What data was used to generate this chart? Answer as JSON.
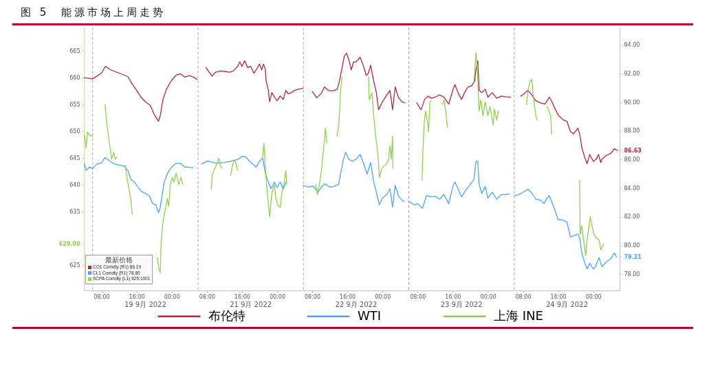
{
  "chart_data": {
    "type": "line",
    "title": "图 5  能源市场上周走势",
    "annotations": [
      "最新价格",
      "CO1 Comdty (R1) 86.19",
      "CL1 Comdty (R1) 78.80",
      "SCPA Comdty (L1) 625.1001",
      "19 9月 2022",
      "21 9月 2022",
      "22 9月 2022",
      "23 9月 2022",
      "24 9月 2022"
    ],
    "series": [
      {
        "name": "布伦特",
        "color": "#b8243c",
        "axis": "y2",
        "x": [
          "2022-09-19T04:06",
          "2022-09-19T06:00",
          "2022-09-19T08:00",
          "2022-09-19T08:54",
          "2022-09-19T10:00",
          "2022-09-19T12:00",
          "2022-09-19T14:00",
          "2022-09-19T15:00",
          "2022-09-19T16:00",
          "2022-09-19T17:00",
          "2022-09-19T18:00",
          "2022-09-19T19:06",
          "2022-09-19T20:00",
          "2022-09-19T21:00",
          "2022-09-19T21:24",
          "2022-09-19T22:00",
          "2022-09-19T22:48",
          "2022-09-20T00:00",
          "2022-09-20T01:06",
          "2022-09-20T02:00",
          "2022-09-20T03:00",
          "2022-09-20T04:00",
          "2022-09-20T05:00",
          "2022-09-20T05:48",
          "2022-09-20T06:48",
          "2022-09-20T07:48",
          "2022-09-20T08:42",
          "2022-09-20T09:12",
          "2022-09-20T10:00",
          "2022-09-20T11:06",
          "2022-09-20T12:00",
          "2022-09-20T13:12",
          "2022-09-20T14:00",
          "2022-09-20T15:00",
          "2022-09-20T15:30",
          "2022-09-20T16:00",
          "2022-09-20T16:36",
          "2022-09-20T17:18",
          "2022-09-20T18:00",
          "2022-09-20T18:42",
          "2022-09-20T19:24",
          "2022-09-20T20:00",
          "2022-09-20T20:30",
          "2022-09-20T20:54",
          "2022-09-20T21:18",
          "2022-09-20T21:30",
          "2022-09-20T22:00",
          "2022-09-20T22:18",
          "2022-09-20T22:48",
          "2022-09-20T23:24",
          "2022-09-21T00:00",
          "2022-09-21T00:42",
          "2022-09-21T01:24",
          "2022-09-21T02:00",
          "2022-09-21T02:30",
          "2022-09-21T03:18",
          "2022-09-21T04:00",
          "2022-09-21T04:48",
          "2022-09-21T05:30",
          "2022-09-21T05:54",
          "2022-09-21T07:00",
          "2022-09-21T08:00",
          "2022-09-21T09:00",
          "2022-09-21T10:00",
          "2022-09-21T10:48",
          "2022-09-21T11:36",
          "2022-09-21T12:42",
          "2022-09-21T13:42",
          "2022-09-21T14:12",
          "2022-09-21T14:48",
          "2022-09-21T15:18",
          "2022-09-21T15:48",
          "2022-09-21T16:18",
          "2022-09-21T16:54",
          "2022-09-21T17:24",
          "2022-09-21T18:00",
          "2022-09-21T18:54",
          "2022-09-21T19:42",
          "2022-09-21T20:18",
          "2022-09-21T20:48",
          "2022-09-21T21:18",
          "2022-09-21T22:00",
          "2022-09-21T22:36",
          "2022-09-21T23:06",
          "2022-09-22T00:00",
          "2022-09-22T01:00",
          "2022-09-22T01:42",
          "2022-09-22T02:18",
          "2022-09-22T02:54",
          "2022-09-22T03:36",
          "2022-09-22T04:24",
          "2022-09-22T05:06",
          "2022-09-22T06:24",
          "2022-09-22T07:48",
          "2022-09-22T08:48",
          "2022-09-22T09:36",
          "2022-09-22T10:24",
          "2022-09-22T11:06",
          "2022-09-22T12:00",
          "2022-09-22T13:00",
          "2022-09-22T14:00",
          "2022-09-22T15:06",
          "2022-09-22T16:00",
          "2022-09-22T16:30",
          "2022-09-22T17:12",
          "2022-09-22T18:00",
          "2022-09-22T18:42",
          "2022-09-22T19:30",
          "2022-09-22T20:18",
          "2022-09-22T21:00",
          "2022-09-22T21:18",
          "2022-09-22T21:42",
          "2022-09-22T22:00",
          "2022-09-22T22:36",
          "2022-09-22T23:24",
          "2022-09-23T00:00",
          "2022-09-23T01:00",
          "2022-09-23T02:00",
          "2022-09-23T03:06",
          "2022-09-23T04:00",
          "2022-09-23T05:12",
          "2022-09-23T06:18",
          "2022-09-23T07:30",
          "2022-09-23T08:18",
          "2022-09-23T09:06",
          "2022-09-23T10:00",
          "2022-09-23T10:54",
          "2022-09-23T12:00",
          "2022-09-23T13:00",
          "2022-09-23T14:00",
          "2022-09-23T14:36",
          "2022-09-23T15:24",
          "2022-09-23T16:06",
          "2022-09-23T17:12",
          "2022-09-23T18:00",
          "2022-09-23T18:48",
          "2022-09-23T19:30",
          "2022-09-23T20:30",
          "2022-09-23T20:54",
          "2022-09-23T21:24",
          "2022-09-23T22:00",
          "2022-09-23T22:36",
          "2022-09-23T23:12",
          "2022-09-24T00:00",
          "2022-09-24T00:42",
          "2022-09-24T01:12",
          "2022-09-24T01:42",
          "2022-09-24T02:00",
          "2022-09-24T02:54",
          "2022-09-24T04:00",
          "2022-09-24T04:48",
          "2022-09-24T05:30"
        ],
        "values": [
          91.72,
          91.64,
          92.04,
          92.52,
          92.28,
          92.04,
          91.8,
          91.28,
          90.84,
          90.36,
          90.04,
          89.8,
          89.16,
          88.68,
          89.08,
          90.2,
          90.92,
          91.56,
          91.92,
          91.99,
          91.76,
          91.87,
          91.76,
          91.6,
          null,
          92.43,
          92.04,
          91.83,
          92.11,
          92.19,
          92.16,
          92.11,
          92.19,
          92.51,
          92.83,
          92.51,
          92.91,
          92.43,
          92.51,
          92.04,
          92.35,
          92.67,
          92.27,
          92.67,
          92.35,
          91.48,
          90.84,
          90.04,
          90.68,
          90.36,
          90.12,
          90.44,
          90.2,
          90.84,
          90.6,
          90.68,
          90.84,
          90.92,
          90.96,
          90.99,
          null,
          90.76,
          90.32,
          90.6,
          91.08,
          90.84,
          90.8,
          90.92,
          91.48,
          92.43,
          93.23,
          93.43,
          92.99,
          92.27,
          92.83,
          92.83,
          93.15,
          92.51,
          91.88,
          92.04,
          92.59,
          91.48,
          90.68,
          89.48,
          90.04,
          90.52,
          90.84,
          89.48,
          91.08,
          90.36,
          90.04,
          89.96,
          null,
          89.96,
          89.48,
          90.2,
          90.44,
          90.28,
          90.36,
          90.52,
          90.36,
          89.88,
          90.84,
          91.24,
          90.68,
          90.2,
          90.68,
          91.08,
          91.16,
          91.48,
          92.27,
          92.91,
          90.84,
          90.68,
          90.92,
          90.36,
          90.68,
          90.28,
          90.44,
          90.39,
          90.36,
          null,
          90.44,
          90.6,
          90.84,
          90.52,
          90.12,
          89.96,
          89.88,
          90.36,
          90.04,
          89.48,
          89.08,
          88.76,
          88.68,
          87.96,
          87.8,
          88.2,
          87.8,
          86.84,
          86.2,
          85.72,
          86.36,
          85.88,
          86.04,
          86.36,
          85.8,
          86.04,
          86.28,
          86.44,
          86.76,
          86.63
        ]
      },
      {
        "name": "WTI",
        "color": "#4aa3ff",
        "axis": "y2",
        "x": [
          "2022-09-19T04:06",
          "2022-09-19T04:30",
          "2022-09-19T05:18",
          "2022-09-19T06:00",
          "2022-09-19T06:54",
          "2022-09-19T08:00",
          "2022-09-19T08:48",
          "2022-09-19T10:00",
          "2022-09-19T11:00",
          "2022-09-19T12:00",
          "2022-09-19T13:06",
          "2022-09-19T14:00",
          "2022-09-19T14:42",
          "2022-09-19T15:30",
          "2022-09-19T16:00",
          "2022-09-19T17:00",
          "2022-09-19T18:00",
          "2022-09-19T18:54",
          "2022-09-19T19:42",
          "2022-09-19T20:24",
          "2022-09-19T21:00",
          "2022-09-19T21:24",
          "2022-09-19T21:42",
          "2022-09-19T22:18",
          "2022-09-19T23:06",
          "2022-09-20T00:00",
          "2022-09-20T00:54",
          "2022-09-20T02:00",
          "2022-09-20T03:00",
          "2022-09-20T03:48",
          "2022-09-20T04:48",
          "2022-09-20T05:48",
          "2022-09-20T06:48",
          "2022-09-20T07:12",
          "2022-09-20T08:12",
          "2022-09-20T10:00",
          "2022-09-20T11:54",
          "2022-09-20T13:24",
          "2022-09-20T15:18",
          "2022-09-20T16:00",
          "2022-09-20T16:48",
          "2022-09-20T18:00",
          "2022-09-20T19:12",
          "2022-09-20T20:00",
          "2022-09-20T20:42",
          "2022-09-20T21:24",
          "2022-09-20T22:00",
          "2022-09-20T22:36",
          "2022-09-20T23:24",
          "2022-09-21T00:00",
          "2022-09-21T00:42",
          "2022-09-21T01:24",
          "2022-09-21T02:00",
          "2022-09-21T04:00",
          "2022-09-21T05:54",
          "2022-09-21T07:12",
          "2022-09-21T08:12",
          "2022-09-21T09:18",
          "2022-09-21T10:00",
          "2022-09-21T10:48",
          "2022-09-21T12:00",
          "2022-09-21T12:54",
          "2022-09-21T14:00",
          "2022-09-21T14:30",
          "2022-09-21T15:00",
          "2022-09-21T15:36",
          "2022-09-21T16:18",
          "2022-09-21T17:06",
          "2022-09-21T18:00",
          "2022-09-21T18:54",
          "2022-09-21T19:42",
          "2022-09-21T20:30",
          "2022-09-21T21:18",
          "2022-09-21T22:00",
          "2022-09-21T22:36",
          "2022-09-21T23:18",
          "2022-09-22T00:00",
          "2022-09-22T01:00",
          "2022-09-22T01:42",
          "2022-09-22T02:18",
          "2022-09-22T02:54",
          "2022-09-22T03:36",
          "2022-09-22T04:24",
          "2022-09-22T05:00",
          "2022-09-22T05:36",
          "2022-09-22T06:00",
          "2022-09-22T07:12",
          "2022-09-22T08:00",
          "2022-09-22T09:06",
          "2022-09-22T10:00",
          "2022-09-22T11:06",
          "2022-09-22T12:00",
          "2022-09-22T13:00",
          "2022-09-22T14:00",
          "2022-09-22T15:06",
          "2022-09-22T16:00",
          "2022-09-22T16:30",
          "2022-09-22T17:12",
          "2022-09-22T18:00",
          "2022-09-22T19:00",
          "2022-09-22T20:00",
          "2022-09-22T20:48",
          "2022-09-22T21:18",
          "2022-09-22T21:42",
          "2022-09-22T22:00",
          "2022-09-22T22:36",
          "2022-09-22T23:24",
          "2022-09-23T00:00",
          "2022-09-23T01:00",
          "2022-09-23T02:00",
          "2022-09-23T03:06",
          "2022-09-23T04:00",
          "2022-09-23T04:54",
          "2022-09-23T05:30",
          "2022-09-23T06:06",
          "2022-09-23T07:00",
          "2022-09-23T08:00",
          "2022-09-23T09:06",
          "2022-09-23T10:00",
          "2022-09-23T10:54",
          "2022-09-23T12:00",
          "2022-09-23T12:48",
          "2022-09-23T13:18",
          "2022-09-23T14:00",
          "2022-09-23T14:36",
          "2022-09-23T15:24",
          "2022-09-23T16:00",
          "2022-09-23T16:54",
          "2022-09-23T18:00",
          "2022-09-23T18:48",
          "2022-09-23T19:30",
          "2022-09-23T20:30",
          "2022-09-23T20:54",
          "2022-09-23T21:24",
          "2022-09-23T22:00",
          "2022-09-23T22:36",
          "2022-09-23T23:12",
          "2022-09-24T00:00",
          "2022-09-24T00:30",
          "2022-09-24T01:18",
          "2022-09-24T02:00",
          "2022-09-24T02:54",
          "2022-09-24T04:00",
          "2022-09-24T04:48",
          "2022-09-24T05:18"
        ],
        "values": [
          85.72,
          85.24,
          85.48,
          85.37,
          85.69,
          85.77,
          86.15,
          85.88,
          85.69,
          85.62,
          85.56,
          85.24,
          84.6,
          84.44,
          84.2,
          83.8,
          83.64,
          83.48,
          82.92,
          82.84,
          82.28,
          82.68,
          83.32,
          84.44,
          85.08,
          85.48,
          85.72,
          85.75,
          85.48,
          85.48,
          85.43,
          null,
          85.69,
          85.75,
          85.91,
          85.75,
          85.8,
          85.88,
          86.04,
          86.23,
          86.2,
          85.8,
          85.48,
          85.88,
          86.12,
          84.92,
          84.44,
          83.96,
          84.44,
          84.04,
          84.44,
          83.96,
          84.44,
          null,
          84.2,
          84.09,
          84.15,
          83.72,
          84.04,
          84.31,
          84.09,
          84.12,
          84.28,
          85.08,
          85.88,
          86.52,
          86.04,
          85.88,
          86.04,
          86.36,
          85.72,
          85.0,
          85.8,
          84.44,
          83.72,
          82.84,
          83.32,
          83.56,
          83.96,
          82.68,
          84.2,
          83.48,
          83.16,
          83.08,
          null,
          83.08,
          82.84,
          82.92,
          82.6,
          83.48,
          83.4,
          83.45,
          83.24,
          83.56,
          82.92,
          84.12,
          84.44,
          83.96,
          83.4,
          83.88,
          84.28,
          84.6,
          85.88,
          85.88,
          84.28,
          83.64,
          84.12,
          83.32,
          83.72,
          83.24,
          83.56,
          83.56,
          83.61,
          null,
          83.48,
          83.56,
          83.72,
          83.93,
          83.67,
          83.24,
          83.16,
          82.92,
          83.24,
          83.48,
          83.0,
          82.36,
          81.8,
          81.8,
          81.64,
          80.6,
          80.68,
          80.8,
          80.52,
          79.48,
          78.84,
          78.36,
          78.76,
          78.36,
          78.52,
          79.16,
          78.52,
          78.84,
          79.08,
          79.48,
          79.21
        ]
      },
      {
        "name": "上海 INE",
        "color": "#8fd14f",
        "x": [
          "2022-09-19T04:06",
          "2022-09-19T04:30",
          "2022-09-19T04:48",
          "2022-09-19T05:18",
          "2022-09-19T05:54",
          "2022-09-19T07:18",
          "2022-09-19T08:48",
          "2022-09-19T09:12",
          "2022-09-19T09:42",
          "2022-09-19T10:18",
          "2022-09-19T10:48",
          "2022-09-19T11:06",
          "2022-09-19T11:30",
          "2022-09-19T12:24",
          "2022-09-19T13:24",
          "2022-09-19T13:54",
          "2022-09-19T14:18",
          "2022-09-19T14:42",
          "2022-09-19T15:00",
          "2022-09-19T17:48",
          "2022-09-19T20:42",
          "2022-09-19T21:06",
          "2022-09-19T21:24",
          "2022-09-19T21:36",
          "2022-09-19T21:54",
          "2022-09-19T22:18",
          "2022-09-19T22:36",
          "2022-09-19T23:00",
          "2022-09-19T23:18",
          "2022-09-19T23:42",
          "2022-09-20T00:06",
          "2022-09-20T00:30",
          "2022-09-20T01:00",
          "2022-09-20T01:36",
          "2022-09-20T02:06",
          "2022-09-20T02:30",
          "2022-09-20T06:00",
          "2022-09-20T09:00",
          "2022-09-20T09:12",
          "2022-09-20T09:48",
          "2022-09-20T10:18",
          "2022-09-20T10:42",
          "2022-09-20T11:06",
          "2022-09-20T11:30",
          "2022-09-20T12:30",
          "2022-09-20T13:24",
          "2022-09-20T13:48",
          "2022-09-20T14:12",
          "2022-09-20T14:36",
          "2022-09-20T15:00",
          "2022-09-20T18:00",
          "2022-09-20T20:42",
          "2022-09-20T21:00",
          "2022-09-20T21:18",
          "2022-09-20T21:36",
          "2022-09-20T22:00",
          "2022-09-20T22:18",
          "2022-09-20T22:48",
          "2022-09-20T23:24",
          "2022-09-20T23:42",
          "2022-09-21T00:12",
          "2022-09-21T00:42",
          "2022-09-21T01:12",
          "2022-09-21T01:36",
          "2022-09-21T02:00",
          "2022-09-21T02:12",
          "2022-09-21T05:00",
          "2022-09-21T08:48",
          "2022-09-21T09:12",
          "2022-09-21T09:42",
          "2022-09-21T10:06",
          "2022-09-21T10:18",
          "2022-09-21T10:42",
          "2022-09-21T11:00",
          "2022-09-21T11:18",
          "2022-09-21T12:24",
          "2022-09-21T13:36",
          "2022-09-21T13:54",
          "2022-09-21T14:12",
          "2022-09-21T14:30",
          "2022-09-21T14:48",
          "2022-09-21T17:30",
          "2022-09-21T20:48",
          "2022-09-21T21:00",
          "2022-09-21T21:36",
          "2022-09-21T22:06",
          "2022-09-21T22:24",
          "2022-09-21T22:54",
          "2022-09-21T23:18",
          "2022-09-21T23:42",
          "2022-09-22T00:12",
          "2022-09-22T00:54",
          "2022-09-22T01:24",
          "2022-09-22T01:42",
          "2022-09-22T02:00",
          "2022-09-22T02:18",
          "2022-09-22T02:24",
          "2022-09-22T06:00",
          "2022-09-22T09:00",
          "2022-09-22T09:12",
          "2022-09-22T09:30",
          "2022-09-22T09:48",
          "2022-09-22T10:12",
          "2022-09-22T10:30",
          "2022-09-22T10:48",
          "2022-09-22T11:06",
          "2022-09-22T12:30",
          "2022-09-22T13:42",
          "2022-09-22T14:00",
          "2022-09-22T14:24",
          "2022-09-22T14:48",
          "2022-09-22T17:30",
          "2022-09-22T20:48",
          "2022-09-22T21:06",
          "2022-09-22T21:18",
          "2022-09-22T21:36",
          "2022-09-22T22:00",
          "2022-09-22T22:24",
          "2022-09-22T22:54",
          "2022-09-22T23:24",
          "2022-09-23T00:00",
          "2022-09-23T00:30",
          "2022-09-23T01:12",
          "2022-09-23T01:30",
          "2022-09-23T02:00",
          "2022-09-23T02:24",
          "2022-09-23T05:00",
          "2022-09-23T08:48",
          "2022-09-23T09:12",
          "2022-09-23T09:36",
          "2022-09-23T10:00",
          "2022-09-23T10:24",
          "2022-09-23T10:54",
          "2022-09-23T11:18",
          "2022-09-23T12:24",
          "2022-09-23T13:30",
          "2022-09-23T13:54",
          "2022-09-23T14:18",
          "2022-09-23T14:30",
          "2022-09-23T17:30",
          "2022-09-23T20:54",
          "2022-09-23T21:00",
          "2022-09-23T21:24",
          "2022-09-23T21:54",
          "2022-09-23T22:18",
          "2022-09-23T22:36",
          "2022-09-23T22:54",
          "2022-09-23T23:18",
          "2022-09-23T23:42",
          "2022-09-24T00:12",
          "2022-09-24T00:48",
          "2022-09-24T01:18",
          "2022-09-24T01:42",
          "2022-09-24T02:06",
          "2022-09-24T02:18"
        ],
        "values": [
          649.5,
          646.9,
          649.9,
          649.3,
          649.1,
          null,
          655.0,
          651.6,
          648.6,
          644.8,
          646.1,
          644.8,
          645.2,
          null,
          643.7,
          640.9,
          639.2,
          637.1,
          634.5,
          null,
          626.4,
          624.3,
          623.6,
          629.4,
          632.4,
          634.5,
          635.8,
          637.5,
          636.0,
          640.1,
          641.4,
          640.5,
          642.2,
          640.1,
          641.4,
          640.1,
          null,
          639.2,
          641.8,
          643.1,
          643.9,
          645.0,
          643.5,
          643.1,
          null,
          641.8,
          643.5,
          644.6,
          644.2,
          642.7,
          null,
          645.2,
          647.8,
          643.5,
          640.1,
          636.7,
          634.1,
          638.4,
          640.1,
          637.5,
          636.2,
          635.8,
          639.2,
          640.5,
          642.7,
          640.1,
          null,
          640.1,
          638.2,
          640.5,
          642.7,
          644.4,
          647.8,
          650.6,
          647.8,
          null,
          649.1,
          650.3,
          653.3,
          658.0,
          660.2,
          null,
          660.2,
          655.9,
          657.2,
          652.1,
          649.5,
          646.1,
          641.4,
          642.7,
          643.5,
          643.9,
          644.8,
          647.4,
          644.8,
          649.1,
          643.1,
          null,
          640.9,
          646.1,
          651.6,
          653.8,
          652.1,
          649.9,
          655.5,
          655.7,
          null,
          655.0,
          655.9,
          653.8,
          650.8,
          null,
          659.3,
          662.3,
          664.7,
          661.5,
          653.8,
          655.9,
          652.9,
          655.5,
          652.9,
          654.6,
          651.2,
          654.2,
          652.1,
          653.8,
          null,
          655.0,
          658.0,
          659.3,
          659.7,
          656.3,
          652.9,
          652.1,
          null,
          654.6,
          653.8,
          652.9,
          649.5,
          null,
          640.9,
          630.7,
          632.4,
          629.0,
          626.8,
          629.8,
          631.5,
          634.1,
          632.4,
          630.7,
          630.0,
          629.8,
          627.9,
          628.6,
          629
        ]
      }
    ],
    "xlim": [
      "2022-09-19T04:00",
      "2022-09-24T06:00"
    ],
    "xticks": [
      {
        "value": "2022-09-19T08:00",
        "label": "08:00"
      },
      {
        "value": "2022-09-19T16:00",
        "label": "16:00"
      },
      {
        "value": "2022-09-20T00:00",
        "label": "00:00"
      },
      {
        "value": "2022-09-20T08:00",
        "label": "08:00"
      },
      {
        "value": "2022-09-20T16:00",
        "label": "16:00"
      },
      {
        "value": "2022-09-21T00:00",
        "label": "00:00"
      },
      {
        "value": "2022-09-21T08:00",
        "label": "08:00"
      },
      {
        "value": "2022-09-21T16:00",
        "label": "16:00"
      },
      {
        "value": "2022-09-22T00:00",
        "label": "00:00"
      },
      {
        "value": "2022-09-22T08:00",
        "label": "08:00"
      },
      {
        "value": "2022-09-22T16:00",
        "label": "16:00"
      },
      {
        "value": "2022-09-23T00:00",
        "label": "00:00"
      },
      {
        "value": "2022-09-23T08:00",
        "label": "08:00"
      },
      {
        "value": "2022-09-23T16:00",
        "label": "16:00"
      },
      {
        "value": "2022-09-24T00:00",
        "label": "00:00"
      }
    ],
    "ylim": [
      620.3,
      669.4
    ],
    "yticks": [
      625,
      {
        "value": 629,
        "label": "629.00"
      },
      635,
      640,
      645,
      650,
      655,
      660,
      665
    ],
    "y2lim": [
      76.86,
      95.23
    ],
    "y2ticks": [
      {
        "value": 78,
        "label": "78.00"
      },
      79.21,
      {
        "value": 80,
        "label": "80.00"
      },
      {
        "value": 82,
        "label": "82.00"
      },
      {
        "value": 84,
        "label": "84.00"
      },
      {
        "value": 86,
        "label": "86.00"
      },
      86.63,
      {
        "value": 88,
        "label": "88.00"
      },
      {
        "value": 90,
        "label": "90.00"
      },
      {
        "value": 92,
        "label": "92.00"
      },
      {
        "value": 94,
        "label": "94.00"
      }
    ],
    "ref_lines": [
      {
        "axis": "x",
        "value": "2022-09-19T06:00",
        "color": "#a6a6a6",
        "line_style": "dashed"
      },
      {
        "axis": "x",
        "value": "2022-09-20T06:00",
        "color": "#a6a6a6",
        "line_style": "dashed"
      },
      {
        "axis": "x",
        "value": "2022-09-21T06:00",
        "color": "#a6a6a6",
        "line_style": "dashed"
      },
      {
        "axis": "x",
        "value": "2022-09-22T06:00",
        "color": "#a6a6a6",
        "line_style": "dashed"
      },
      {
        "axis": "x",
        "value": "2022-09-23T06:00",
        "color": "#a6a6a6",
        "line_style": "dashed"
      }
    ],
    "legend": "bottom"
  }
}
